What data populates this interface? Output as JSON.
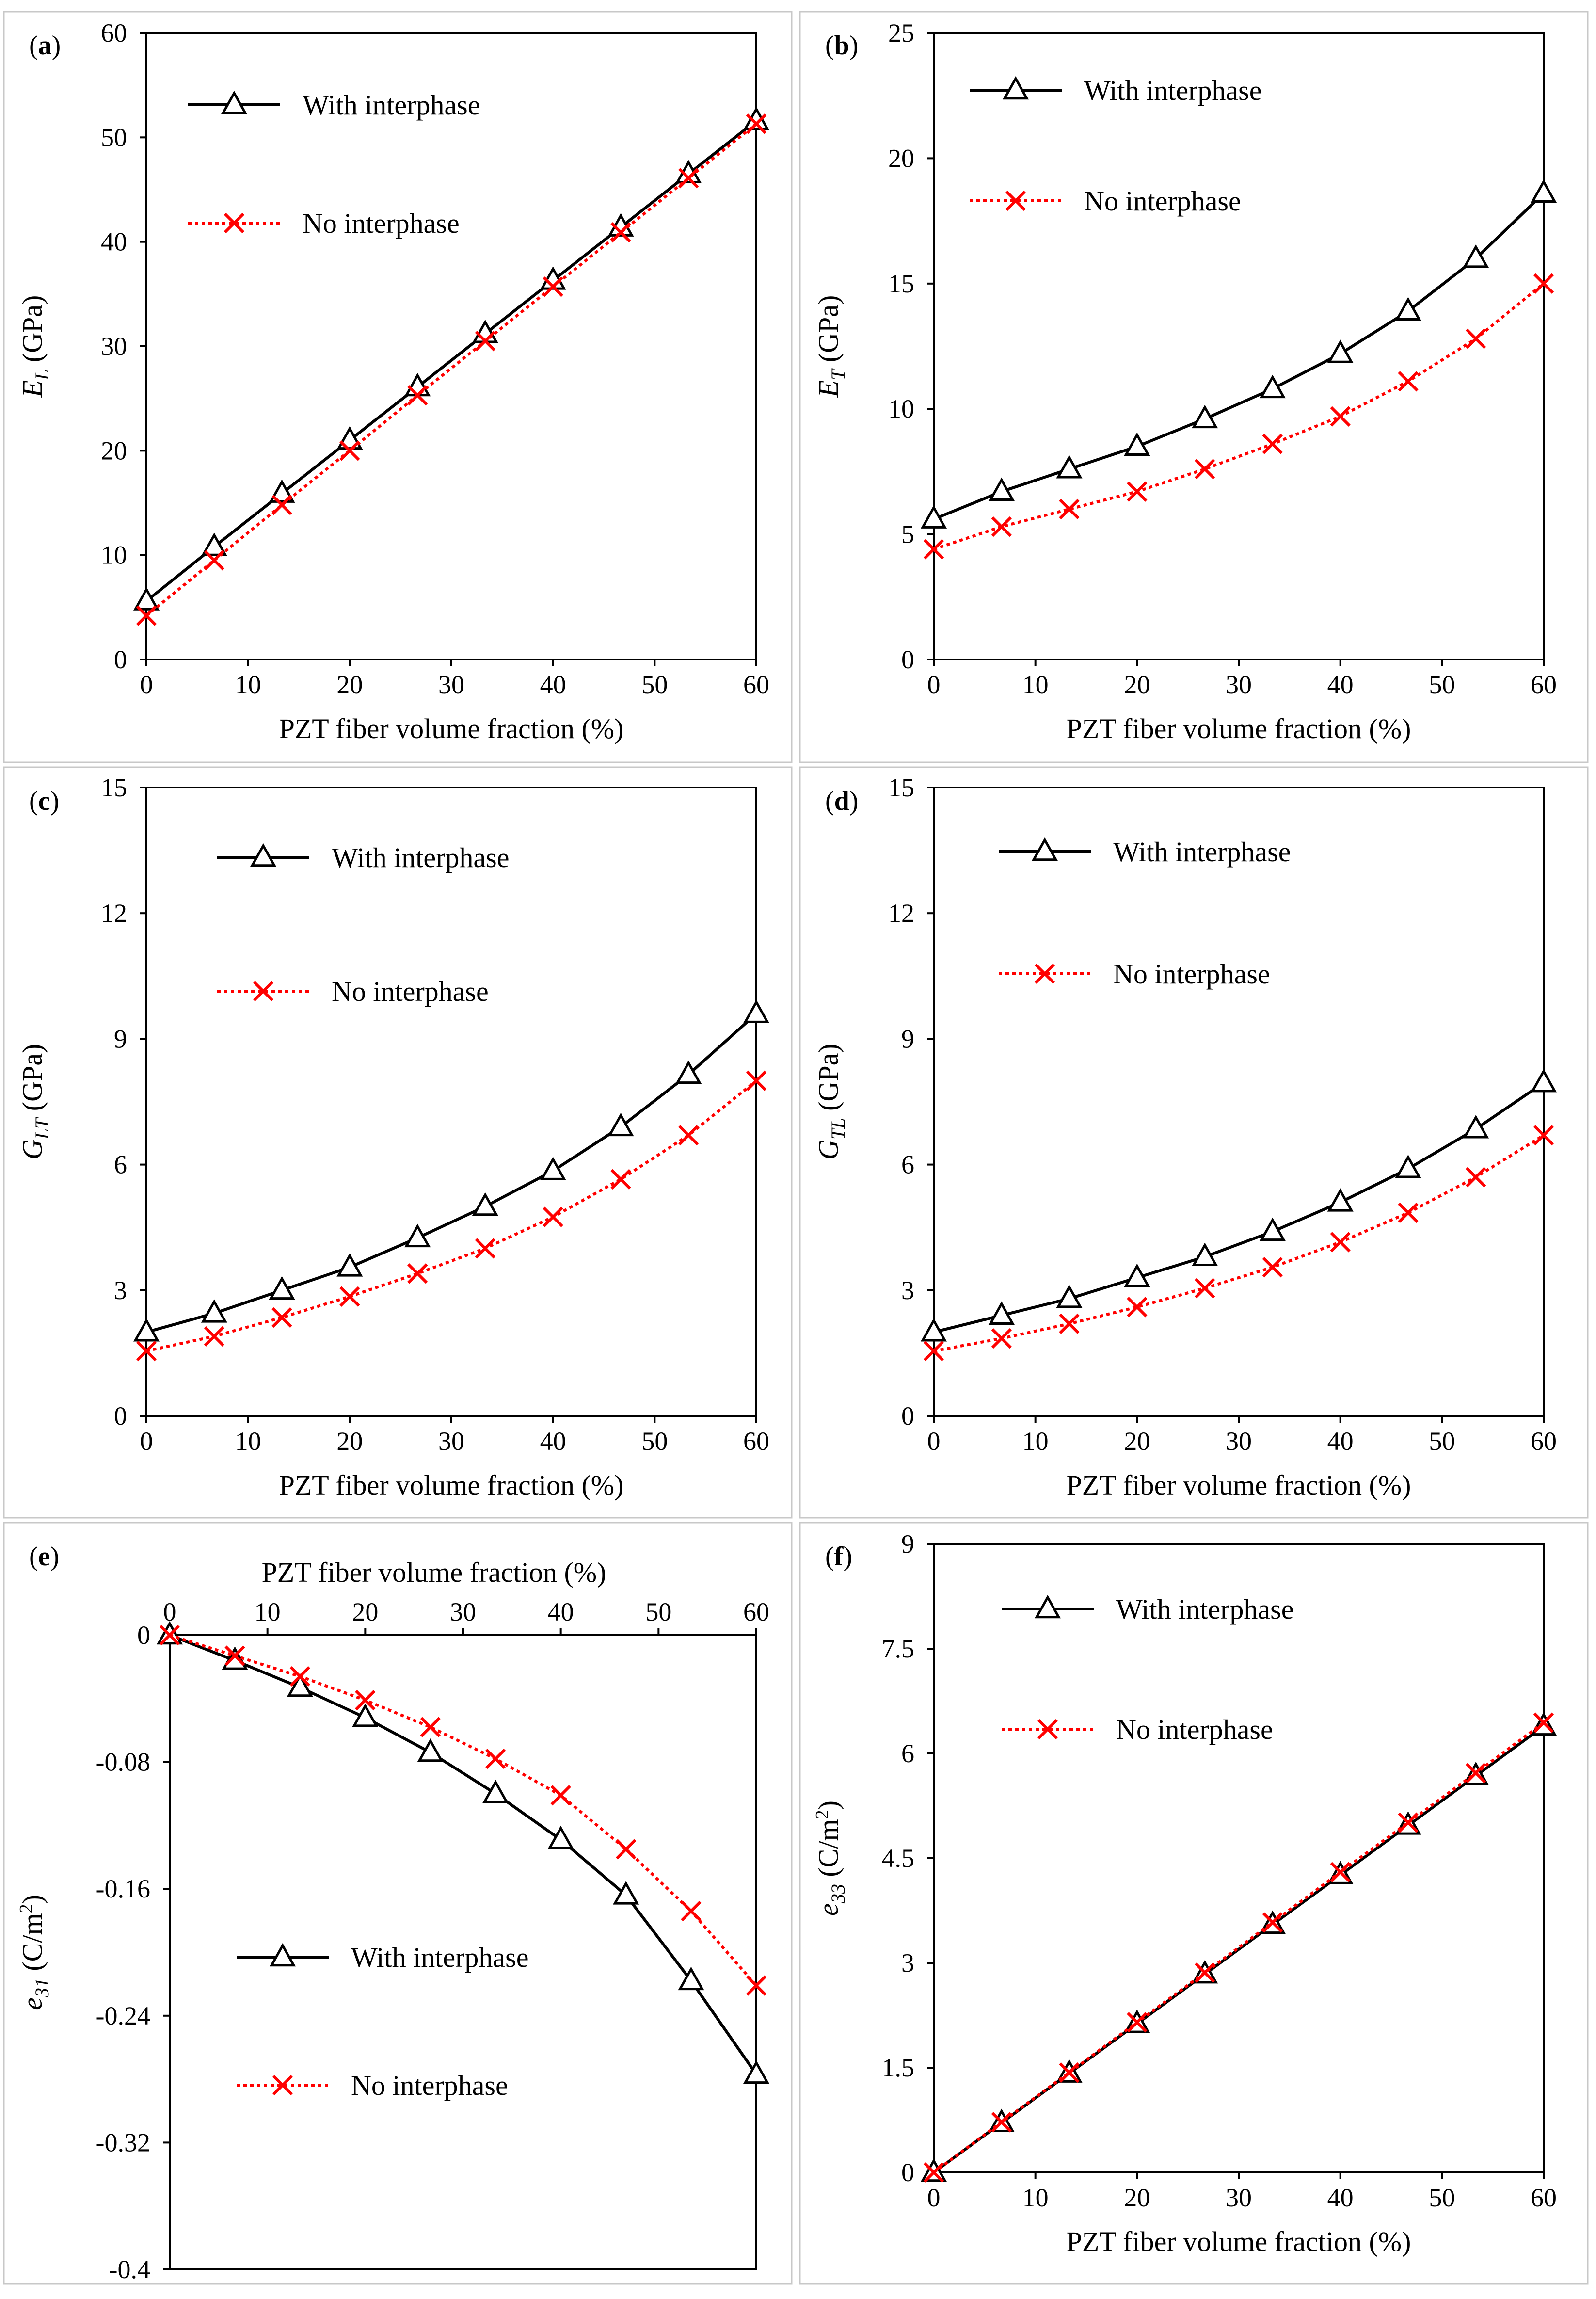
{
  "chart_data": [
    {
      "panel": "(a)",
      "panel_letter": "a",
      "type": "line",
      "xlabel": "PZT fiber volume fraction (%)",
      "ylabel_main": "E",
      "ylabel_sub": "L",
      "ylabel_unit": " (GPa)",
      "ylabel_sup": "",
      "ylabel_unit_tail": "",
      "xlim": [
        0,
        60
      ],
      "ylim": [
        0,
        60
      ],
      "xticks": [
        0,
        10,
        20,
        30,
        40,
        50,
        60
      ],
      "yticks": [
        0,
        10,
        20,
        30,
        40,
        50,
        60
      ],
      "x_axis_position": "bottom",
      "grid": false,
      "legend_position": "top-left",
      "series": [
        {
          "name": "With interphase",
          "color": "#000000",
          "marker": "triangle",
          "dash": "solid",
          "x": [
            0,
            6.67,
            13.33,
            20,
            26.67,
            33.33,
            40,
            46.67,
            53.33,
            60
          ],
          "y": [
            5.6,
            10.8,
            15.9,
            21.0,
            26.1,
            31.2,
            36.3,
            41.4,
            46.5,
            51.6
          ]
        },
        {
          "name": "No interphase",
          "color": "#ff0000",
          "marker": "x",
          "dash": "dotted",
          "x": [
            0,
            6.67,
            13.33,
            20,
            26.67,
            33.33,
            40,
            46.67,
            53.33,
            60
          ],
          "y": [
            4.2,
            9.5,
            14.8,
            20.0,
            25.3,
            30.5,
            35.7,
            40.9,
            46.1,
            51.3
          ]
        }
      ]
    },
    {
      "panel": "(b)",
      "panel_letter": "b",
      "type": "line",
      "xlabel": "PZT fiber volume fraction (%)",
      "ylabel_main": "E",
      "ylabel_sub": "T",
      "ylabel_unit": " (GPa)",
      "ylabel_sup": "",
      "ylabel_unit_tail": "",
      "xlim": [
        0,
        60
      ],
      "ylim": [
        0,
        25
      ],
      "xticks": [
        0,
        10,
        20,
        30,
        40,
        50,
        60
      ],
      "yticks": [
        0,
        5,
        10,
        15,
        20,
        25
      ],
      "x_axis_position": "bottom",
      "grid": false,
      "legend_position": "top-left",
      "series": [
        {
          "name": "With interphase",
          "color": "#000000",
          "marker": "triangle",
          "dash": "solid",
          "x": [
            0,
            6.67,
            13.33,
            20,
            26.67,
            33.33,
            40,
            46.67,
            53.33,
            60
          ],
          "y": [
            5.6,
            6.7,
            7.6,
            8.5,
            9.6,
            10.8,
            12.2,
            13.9,
            16.0,
            18.6
          ]
        },
        {
          "name": "No interphase",
          "color": "#ff0000",
          "marker": "x",
          "dash": "dotted",
          "x": [
            0,
            6.67,
            13.33,
            20,
            26.67,
            33.33,
            40,
            46.67,
            53.33,
            60
          ],
          "y": [
            4.4,
            5.3,
            6.0,
            6.7,
            7.6,
            8.6,
            9.7,
            11.1,
            12.8,
            15.0
          ]
        }
      ]
    },
    {
      "panel": "(c)",
      "panel_letter": "c",
      "type": "line",
      "xlabel": "PZT fiber volume fraction (%)",
      "ylabel_main": "G",
      "ylabel_sub": "LT",
      "ylabel_unit": " (GPa)",
      "ylabel_sup": "",
      "ylabel_unit_tail": "",
      "xlim": [
        0,
        60
      ],
      "ylim": [
        0,
        15
      ],
      "xticks": [
        0,
        10,
        20,
        30,
        40,
        50,
        60
      ],
      "yticks": [
        0,
        3,
        6,
        9,
        12,
        15
      ],
      "x_axis_position": "bottom",
      "grid": false,
      "legend_position": "top-left",
      "series": [
        {
          "name": "With interphase",
          "color": "#000000",
          "marker": "triangle",
          "dash": "solid",
          "x": [
            0,
            6.67,
            13.33,
            20,
            26.67,
            33.33,
            40,
            46.67,
            53.33,
            60
          ],
          "y": [
            2.0,
            2.45,
            3.0,
            3.55,
            4.25,
            5.0,
            5.85,
            6.9,
            8.15,
            9.6
          ]
        },
        {
          "name": "No interphase",
          "color": "#ff0000",
          "marker": "x",
          "dash": "dotted",
          "x": [
            0,
            6.67,
            13.33,
            20,
            26.67,
            33.33,
            40,
            46.67,
            53.33,
            60
          ],
          "y": [
            1.55,
            1.9,
            2.35,
            2.85,
            3.4,
            4.0,
            4.75,
            5.65,
            6.7,
            8.0
          ]
        }
      ]
    },
    {
      "panel": "(d)",
      "panel_letter": "d",
      "type": "line",
      "xlabel": "PZT fiber volume fraction (%)",
      "ylabel_main": "G",
      "ylabel_sub": "TL",
      "ylabel_unit": " (GPa)",
      "ylabel_sup": "",
      "ylabel_unit_tail": "",
      "xlim": [
        0,
        60
      ],
      "ylim": [
        0,
        15
      ],
      "xticks": [
        0,
        10,
        20,
        30,
        40,
        50,
        60
      ],
      "yticks": [
        0,
        3,
        6,
        9,
        12,
        15
      ],
      "x_axis_position": "bottom",
      "grid": false,
      "legend_position": "top-left",
      "series": [
        {
          "name": "With interphase",
          "color": "#000000",
          "marker": "triangle",
          "dash": "solid",
          "x": [
            0,
            6.67,
            13.33,
            20,
            26.67,
            33.33,
            40,
            46.67,
            53.33,
            60
          ],
          "y": [
            2.0,
            2.4,
            2.8,
            3.3,
            3.8,
            4.4,
            5.1,
            5.9,
            6.85,
            7.95
          ]
        },
        {
          "name": "No interphase",
          "color": "#ff0000",
          "marker": "x",
          "dash": "dotted",
          "x": [
            0,
            6.67,
            13.33,
            20,
            26.67,
            33.33,
            40,
            46.67,
            53.33,
            60
          ],
          "y": [
            1.55,
            1.85,
            2.2,
            2.6,
            3.05,
            3.55,
            4.15,
            4.85,
            5.7,
            6.7
          ]
        }
      ]
    },
    {
      "panel": "(e)",
      "panel_letter": "e",
      "type": "line",
      "xlabel": "PZT fiber volume fraction (%)",
      "ylabel_main": "e",
      "ylabel_sub": "31",
      "ylabel_unit": " (C/m",
      "ylabel_sup": "2",
      "ylabel_unit_tail": ")",
      "xlim": [
        0,
        60
      ],
      "ylim": [
        -0.4,
        0
      ],
      "xticks": [
        0,
        10,
        20,
        30,
        40,
        50,
        60
      ],
      "yticks": [
        -0.4,
        -0.32,
        -0.24,
        -0.16,
        -0.08,
        0
      ],
      "x_axis_position": "top",
      "grid": false,
      "legend_position": "bottom-left",
      "series": [
        {
          "name": "With interphase",
          "color": "#000000",
          "marker": "triangle",
          "dash": "solid",
          "x": [
            0,
            6.67,
            13.33,
            20,
            26.67,
            33.33,
            40,
            46.67,
            53.33,
            60
          ],
          "y": [
            0,
            -0.016,
            -0.033,
            -0.052,
            -0.074,
            -0.1,
            -0.129,
            -0.164,
            -0.218,
            -0.277
          ]
        },
        {
          "name": "No interphase",
          "color": "#ff0000",
          "marker": "x",
          "dash": "dotted",
          "x": [
            0,
            6.67,
            13.33,
            20,
            26.67,
            33.33,
            40,
            46.67,
            53.33,
            60
          ],
          "y": [
            0,
            -0.013,
            -0.026,
            -0.041,
            -0.058,
            -0.078,
            -0.101,
            -0.135,
            -0.174,
            -0.221
          ]
        }
      ]
    },
    {
      "panel": "(f)",
      "panel_letter": "f",
      "type": "line",
      "xlabel": "PZT fiber volume fraction (%)",
      "ylabel_main": "e",
      "ylabel_sub": "33",
      "ylabel_unit": " (C/m",
      "ylabel_sup": "2",
      "ylabel_unit_tail": ")",
      "xlim": [
        0,
        60
      ],
      "ylim": [
        0,
        9
      ],
      "xticks": [
        0,
        10,
        20,
        30,
        40,
        50,
        60
      ],
      "yticks": [
        0,
        1.5,
        3,
        4.5,
        6,
        7.5,
        9
      ],
      "x_axis_position": "bottom",
      "grid": false,
      "legend_position": "top-left",
      "series": [
        {
          "name": "With interphase",
          "color": "#000000",
          "marker": "triangle",
          "dash": "solid",
          "x": [
            0,
            6.67,
            13.33,
            20,
            26.67,
            33.33,
            40,
            46.67,
            53.33,
            60
          ],
          "y": [
            0,
            0.71,
            1.42,
            2.13,
            2.84,
            3.55,
            4.26,
            4.97,
            5.68,
            6.39
          ]
        },
        {
          "name": "No interphase",
          "color": "#ff0000",
          "marker": "x",
          "dash": "dotted",
          "x": [
            0,
            6.67,
            13.33,
            20,
            26.67,
            33.33,
            40,
            46.67,
            53.33,
            60
          ],
          "y": [
            0,
            0.72,
            1.43,
            2.15,
            2.86,
            3.58,
            4.3,
            5.01,
            5.72,
            6.44
          ]
        }
      ]
    }
  ]
}
